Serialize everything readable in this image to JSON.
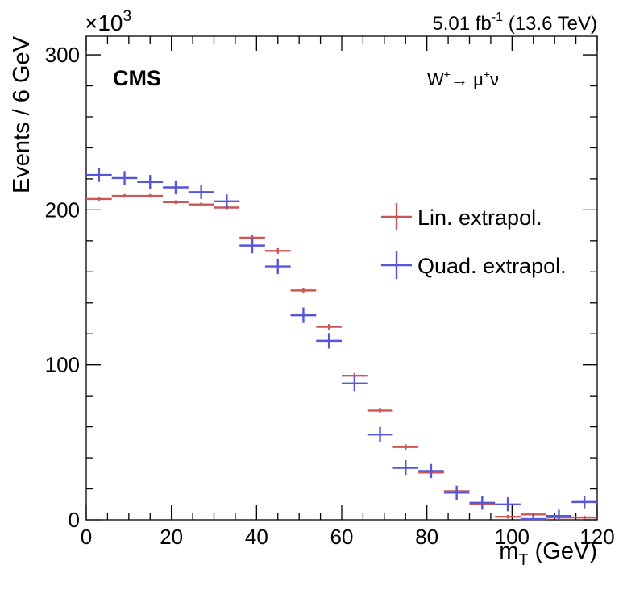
{
  "chart_data": {
    "type": "scatter",
    "title": "",
    "xlabel": "m",
    "xlabel_sub": "T",
    "xlabel_unit": " (GeV)",
    "ylabel": "Events / 6 GeV",
    "xlim": [
      0,
      120
    ],
    "ylim": [
      0,
      312
    ],
    "y_multiplier_base": "×10",
    "y_multiplier_exp": "3",
    "x_ticks": [
      0,
      20,
      40,
      60,
      80,
      100,
      120
    ],
    "y_ticks": [
      0,
      100,
      200,
      300
    ],
    "bin_width": 6,
    "x": [
      3,
      9,
      15,
      21,
      27,
      33,
      39,
      45,
      51,
      57,
      63,
      69,
      75,
      81,
      87,
      93,
      99,
      105,
      111,
      117
    ],
    "series": [
      {
        "name": "Lin. extrapol.",
        "color": "#cc5555",
        "values": [
          207,
          209,
          209,
          205,
          203.5,
          201.5,
          182,
          173.5,
          148,
          124.5,
          93,
          70.5,
          47,
          30.5,
          18.5,
          10,
          2,
          3.5,
          1.5,
          1.5
        ],
        "errors": [
          1.2,
          1.2,
          1.2,
          1.2,
          1.2,
          1.2,
          1.8,
          1.8,
          1.8,
          1.8,
          1.8,
          1.8,
          1.8,
          1.5,
          1.5,
          1.5,
          1.2,
          1.2,
          1.2,
          1.2
        ]
      },
      {
        "name": "Quad. extrapol.",
        "color": "#5555dd",
        "values": [
          222.5,
          220.5,
          218,
          214.5,
          211.5,
          205.5,
          177,
          163.5,
          132,
          115.5,
          88,
          55,
          33.5,
          31.5,
          17.5,
          11,
          10,
          0.5,
          2.5,
          11.5
        ],
        "errors": [
          4.5,
          4.5,
          4.5,
          4.5,
          4.5,
          4.5,
          5,
          5,
          5,
          5,
          5,
          5,
          5,
          4.5,
          4.5,
          4.5,
          4.5,
          4,
          4,
          4
        ]
      }
    ],
    "annotations": {
      "experiment": "CMS",
      "process_pre": "W",
      "process_pre_sup": "+",
      "process_arrow": "→ μ",
      "process_mu_sup": "+",
      "process_post": "ν",
      "lumi_value": "5.01 fb",
      "lumi_exp": "-1",
      "lumi_energy": " (13.6 TeV)"
    },
    "legend": {
      "position": "right-middle",
      "entries": [
        "Lin. extrapol.",
        "Quad. extrapol."
      ]
    }
  }
}
